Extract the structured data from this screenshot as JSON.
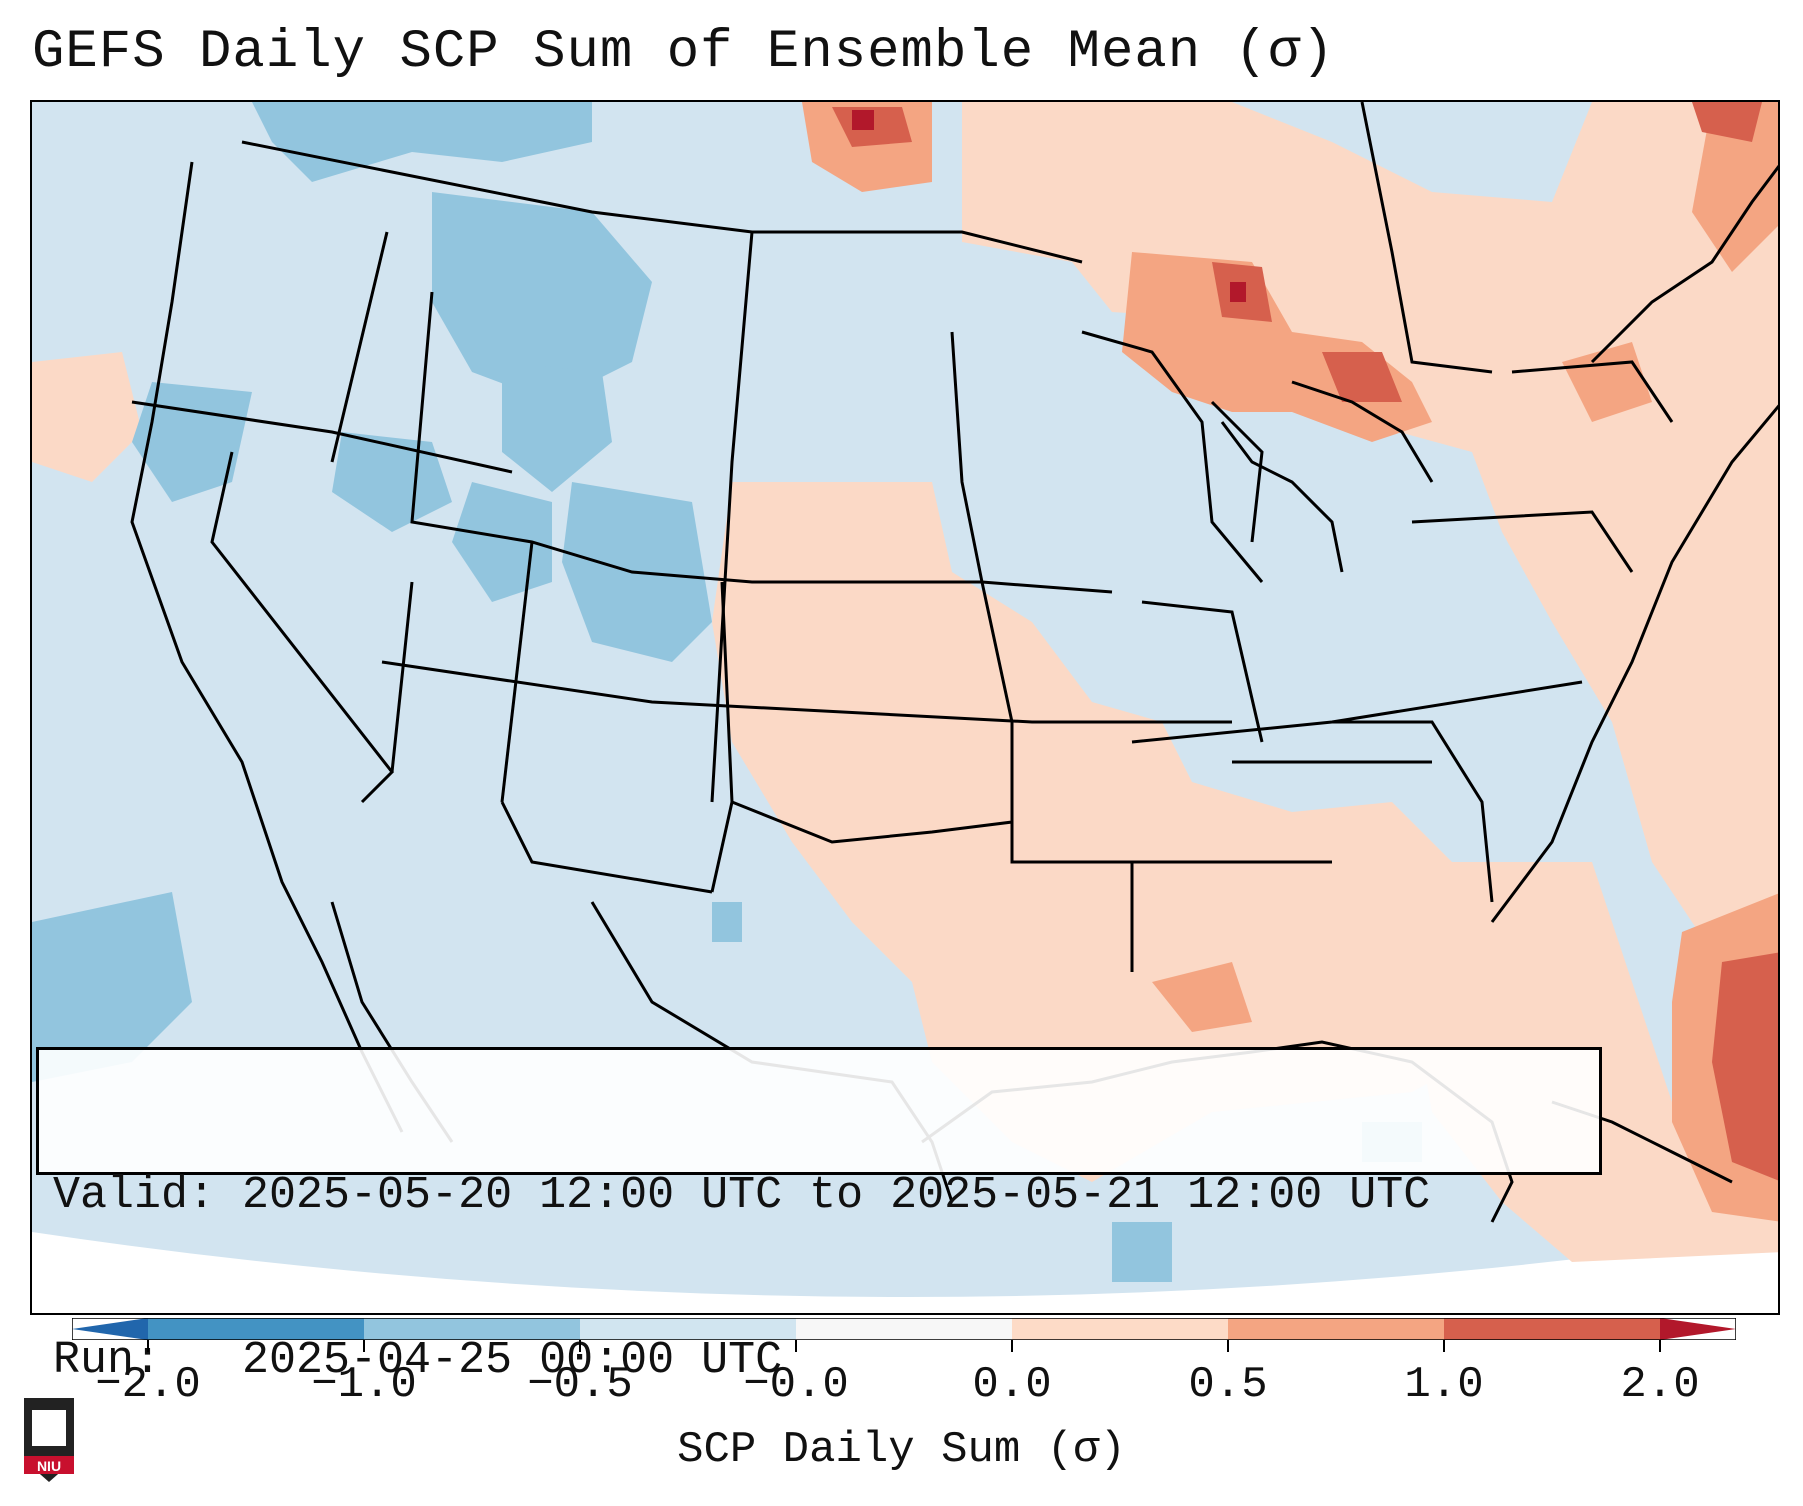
{
  "title": "GEFS Daily SCP Sum of Ensemble Mean (σ)",
  "info": {
    "valid_line": "Valid: 2025-05-20 12:00 UTC to 2025-05-21 12:00 UTC",
    "run_line": "Run:   2025-04-25 00:00 UTC"
  },
  "colorbar": {
    "label": "SCP Daily Sum (σ)",
    "ticks": [
      "−2.0",
      "−1.0",
      "−0.5",
      "−0.0",
      "0.0",
      "0.5",
      "1.0",
      "2.0"
    ],
    "colors": [
      "#4393c3",
      "#92c5de",
      "#d1e5f0",
      "#f7f7f7",
      "#fddbc7",
      "#f4a582",
      "#d6604d"
    ],
    "under_color": "#2166ac",
    "over_color": "#b2182b"
  },
  "legend_colors": {
    "neutral_low": "#d2e4f0",
    "neutral_high": "#fbd9c6",
    "moderate_low": "#92c5de",
    "moderate_high": "#f4a582",
    "strong_high": "#d6604d",
    "extreme_high": "#b2182b"
  },
  "logo": {
    "text": "NIU",
    "color": "#c8102e"
  }
}
